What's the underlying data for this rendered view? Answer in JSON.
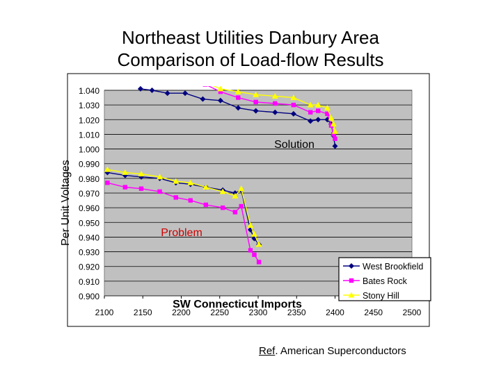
{
  "title_line1": "Northeast Utilities Danbury Area",
  "title_line2": "Comparison of Load-flow Results",
  "ref_prefix": "Ref",
  "ref_text": ". American Superconductors",
  "colors": {
    "plot_bg": "#c0c0c0",
    "west_brookfield": "#000080",
    "bates_rock": "#ff00ff",
    "stony_hill": "#ffff00"
  },
  "chart_data": {
    "type": "line",
    "title": "",
    "xlabel": "SW Connecticut Imports",
    "ylabel": "Per Unit Voltages",
    "xlim": [
      2100,
      2500
    ],
    "ylim": [
      0.9,
      1.04
    ],
    "x_ticks": [
      "2100",
      "2150",
      "2200",
      "2250",
      "2300",
      "2350",
      "2400",
      "2450",
      "2500"
    ],
    "y_ticks": [
      "0.900",
      "0.910",
      "0.920",
      "0.930",
      "0.940",
      "0.950",
      "0.960",
      "0.970",
      "0.980",
      "0.990",
      "1.000",
      "1.010",
      "1.020",
      "1.030",
      "1.040"
    ],
    "grid": true,
    "legend_position": "bottom-right",
    "annotations": [
      "Solution",
      "Problem"
    ],
    "series": [
      {
        "name": "West Brookfield",
        "marker": "diamond",
        "problem": [
          [
            2104,
            0.984
          ],
          [
            2127,
            0.982
          ],
          [
            2148,
            0.981
          ],
          [
            2172,
            0.98
          ],
          [
            2193,
            0.977
          ],
          [
            2212,
            0.976
          ],
          [
            2232,
            0.974
          ],
          [
            2254,
            0.972
          ],
          [
            2270,
            0.97
          ],
          [
            2278,
            0.972
          ],
          [
            2290,
            0.945
          ],
          [
            2295,
            0.939
          ],
          [
            2301,
            0.935
          ]
        ],
        "solution": [
          [
            2147,
            1.041
          ],
          [
            2162,
            1.04
          ],
          [
            2182,
            1.038
          ],
          [
            2205,
            1.038
          ],
          [
            2228,
            1.034
          ],
          [
            2251,
            1.033
          ],
          [
            2274,
            1.028
          ],
          [
            2297,
            1.026
          ],
          [
            2322,
            1.025
          ],
          [
            2346,
            1.024
          ],
          [
            2368,
            1.019
          ],
          [
            2378,
            1.02
          ],
          [
            2390,
            1.02
          ],
          [
            2395,
            1.017
          ],
          [
            2398,
            1.009
          ],
          [
            2400,
            1.002
          ]
        ]
      },
      {
        "name": "Bates Rock",
        "marker": "square",
        "problem": [
          [
            2104,
            0.977
          ],
          [
            2127,
            0.974
          ],
          [
            2148,
            0.973
          ],
          [
            2172,
            0.971
          ],
          [
            2193,
            0.967
          ],
          [
            2212,
            0.965
          ],
          [
            2232,
            0.962
          ],
          [
            2254,
            0.96
          ],
          [
            2270,
            0.957
          ],
          [
            2278,
            0.961
          ],
          [
            2290,
            0.931
          ],
          [
            2295,
            0.928
          ],
          [
            2301,
            0.923
          ]
        ],
        "solution": [
          [
            2231,
            1.044
          ],
          [
            2251,
            1.039
          ],
          [
            2274,
            1.035
          ],
          [
            2297,
            1.032
          ],
          [
            2322,
            1.031
          ],
          [
            2346,
            1.03
          ],
          [
            2368,
            1.025
          ],
          [
            2378,
            1.026
          ],
          [
            2390,
            1.024
          ],
          [
            2395,
            1.016
          ],
          [
            2398,
            1.01
          ],
          [
            2400,
            1.007
          ]
        ]
      },
      {
        "name": "Stony Hill",
        "marker": "triangle",
        "problem": [
          [
            2104,
            0.986
          ],
          [
            2127,
            0.984
          ],
          [
            2148,
            0.983
          ],
          [
            2172,
            0.981
          ],
          [
            2193,
            0.978
          ],
          [
            2212,
            0.977
          ],
          [
            2232,
            0.974
          ],
          [
            2254,
            0.971
          ],
          [
            2270,
            0.968
          ],
          [
            2278,
            0.973
          ],
          [
            2290,
            0.948
          ],
          [
            2295,
            0.942
          ],
          [
            2301,
            0.935
          ]
        ],
        "solution": [
          [
            2233,
            1.045
          ],
          [
            2251,
            1.041
          ],
          [
            2274,
            1.039
          ],
          [
            2297,
            1.037
          ],
          [
            2322,
            1.036
          ],
          [
            2346,
            1.035
          ],
          [
            2368,
            1.03
          ],
          [
            2378,
            1.03
          ],
          [
            2390,
            1.028
          ],
          [
            2395,
            1.021
          ],
          [
            2398,
            1.017
          ],
          [
            2400,
            1.012
          ]
        ]
      }
    ]
  }
}
